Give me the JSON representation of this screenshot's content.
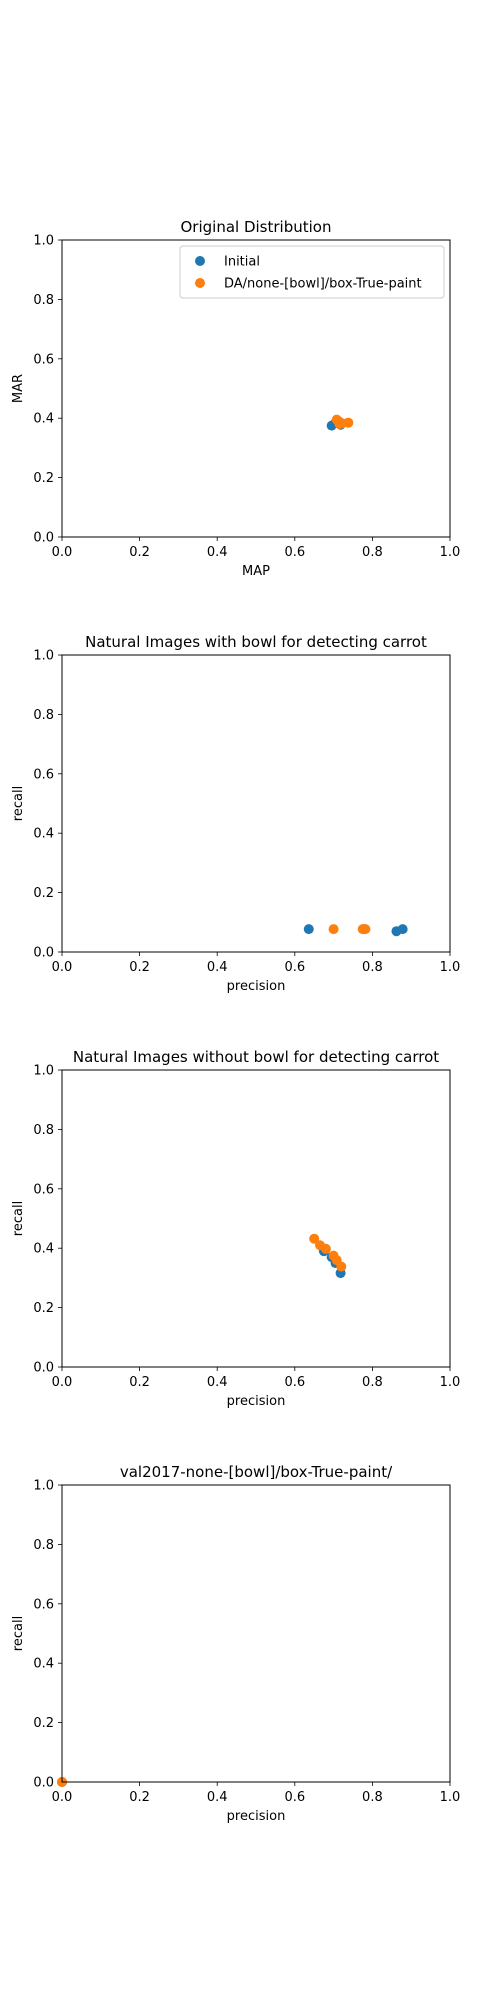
{
  "chart_data": [
    {
      "type": "scatter",
      "title": "Original Distribution",
      "xlabel": "MAP",
      "ylabel": "MAR",
      "xlim": [
        0,
        1
      ],
      "ylim": [
        0,
        1
      ],
      "xticks": [
        "0.0",
        "0.2",
        "0.4",
        "0.6",
        "0.8",
        "1.0"
      ],
      "yticks": [
        "0.0",
        "0.2",
        "0.4",
        "0.6",
        "0.8",
        "1.0"
      ],
      "grid": false,
      "legend": {
        "placement": "top-right",
        "entries": [
          "Initial",
          "DA/none-[bowl]/box-True-paint"
        ]
      },
      "series": [
        {
          "name": "Initial",
          "color": "#1f77b4",
          "points": [
            [
              0.695,
              0.375
            ],
            [
              0.705,
              0.385
            ],
            [
              0.712,
              0.39
            ],
            [
              0.718,
              0.378
            ]
          ]
        },
        {
          "name": "DA/none-[bowl]/box-True-paint",
          "color": "#ff7f0e",
          "points": [
            [
              0.708,
              0.395
            ],
            [
              0.715,
              0.38
            ],
            [
              0.722,
              0.383
            ],
            [
              0.738,
              0.385
            ]
          ]
        }
      ]
    },
    {
      "type": "scatter",
      "title": "Natural Images with bowl for detecting carrot",
      "xlabel": "precision",
      "ylabel": "recall",
      "xlim": [
        0,
        1
      ],
      "ylim": [
        0,
        1
      ],
      "xticks": [
        "0.0",
        "0.2",
        "0.4",
        "0.6",
        "0.8",
        "1.0"
      ],
      "yticks": [
        "0.0",
        "0.2",
        "0.4",
        "0.6",
        "0.8",
        "1.0"
      ],
      "grid": false,
      "series": [
        {
          "name": "Initial",
          "color": "#1f77b4",
          "points": [
            [
              0.636,
              0.077
            ],
            [
              0.78,
              0.077
            ],
            [
              0.862,
              0.07
            ],
            [
              0.878,
              0.077
            ]
          ]
        },
        {
          "name": "DA/none-[bowl]/box-True-paint",
          "color": "#ff7f0e",
          "points": [
            [
              0.7,
              0.077
            ],
            [
              0.775,
              0.077
            ],
            [
              0.782,
              0.077
            ]
          ]
        }
      ]
    },
    {
      "type": "scatter",
      "title": "Natural Images without bowl for detecting carrot",
      "xlabel": "precision",
      "ylabel": "recall",
      "xlim": [
        0,
        1
      ],
      "ylim": [
        0,
        1
      ],
      "xticks": [
        "0.0",
        "0.2",
        "0.4",
        "0.6",
        "0.8",
        "1.0"
      ],
      "yticks": [
        "0.0",
        "0.2",
        "0.4",
        "0.6",
        "0.8",
        "1.0"
      ],
      "grid": false,
      "series": [
        {
          "name": "Initial",
          "color": "#1f77b4",
          "points": [
            [
              0.675,
              0.39
            ],
            [
              0.695,
              0.37
            ],
            [
              0.705,
              0.35
            ],
            [
              0.718,
              0.316
            ]
          ]
        },
        {
          "name": "DA/none-[bowl]/box-True-paint",
          "color": "#ff7f0e",
          "points": [
            [
              0.65,
              0.432
            ],
            [
              0.665,
              0.41
            ],
            [
              0.68,
              0.398
            ],
            [
              0.7,
              0.375
            ],
            [
              0.708,
              0.36
            ],
            [
              0.72,
              0.338
            ]
          ]
        }
      ]
    },
    {
      "type": "scatter",
      "title": "val2017-none-[bowl]/box-True-paint/",
      "xlabel": "precision",
      "ylabel": "recall",
      "xlim": [
        0,
        1
      ],
      "ylim": [
        0,
        1
      ],
      "xticks": [
        "0.0",
        "0.2",
        "0.4",
        "0.6",
        "0.8",
        "1.0"
      ],
      "yticks": [
        "0.0",
        "0.2",
        "0.4",
        "0.6",
        "0.8",
        "1.0"
      ],
      "grid": false,
      "series": [
        {
          "name": "Initial",
          "color": "#1f77b4",
          "points": [
            [
              0.0,
              0.0
            ]
          ]
        },
        {
          "name": "DA/none-[bowl]/box-True-paint",
          "color": "#ff7f0e",
          "points": [
            [
              0.0,
              0.0
            ]
          ]
        }
      ]
    }
  ]
}
